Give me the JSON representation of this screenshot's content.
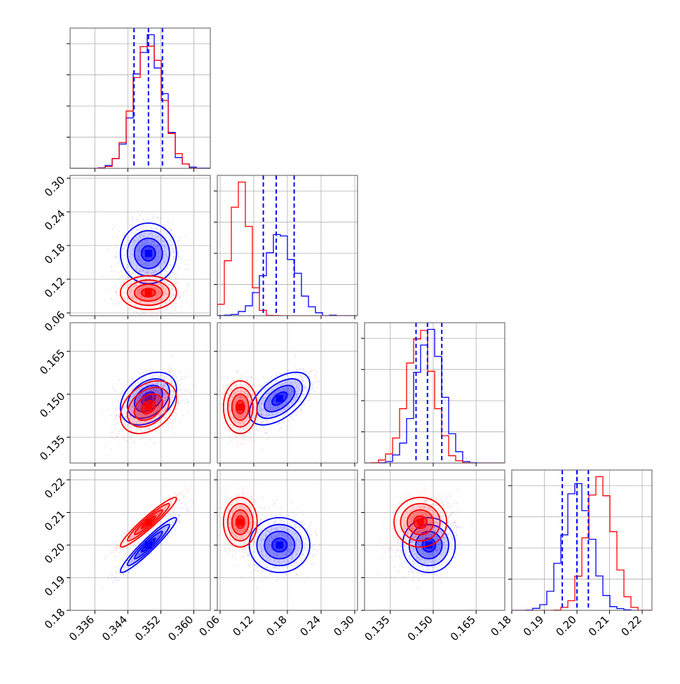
{
  "chart_data": {
    "type": "corner",
    "title": "",
    "grid": true,
    "parameters": [
      {
        "range": [
          0.33,
          0.364
        ],
        "ticks": [
          "0.336",
          "0.344",
          "0.352",
          "0.360"
        ],
        "tick_values": [
          0.336,
          0.344,
          0.352,
          0.36
        ]
      },
      {
        "range": [
          0.055,
          0.305
        ],
        "ticks": [
          "0.06",
          "0.12",
          "0.18",
          "0.24",
          "0.30"
        ],
        "tick_values": [
          0.06,
          0.12,
          0.18,
          0.24,
          0.3
        ]
      },
      {
        "range": [
          0.126,
          0.175
        ],
        "ticks": [
          "0.135",
          "0.150",
          "0.165"
        ],
        "tick_values": [
          0.135,
          0.15,
          0.165
        ]
      },
      {
        "range": [
          0.18,
          0.223
        ],
        "ticks": [
          "0.18",
          "0.19",
          "0.20",
          "0.21",
          "0.22"
        ],
        "tick_values": [
          0.18,
          0.19,
          0.2,
          0.21,
          0.22
        ]
      }
    ],
    "series": [
      {
        "color": "#0000ff",
        "mean": [
          0.349,
          0.166,
          0.1485,
          0.2
        ],
        "sd": [
          0.0034,
          0.027,
          0.0046,
          0.0042
        ],
        "correlation": [
          [
            1.0,
            0.0,
            0.35,
            0.95
          ],
          [
            0.0,
            1.0,
            0.55,
            0.0
          ],
          [
            0.35,
            0.55,
            1.0,
            0.0
          ],
          [
            0.95,
            0.0,
            0.0,
            1.0
          ]
        ],
        "quantiles": [
          [
            0.3455,
            0.349,
            0.3524
          ],
          [
            0.137,
            0.16,
            0.192
          ],
          [
            0.144,
            0.148,
            0.153
          ],
          [
            0.1955,
            0.2,
            0.2035
          ]
        ]
      },
      {
        "color": "#ff0000",
        "mean": [
          0.349,
          0.096,
          0.1455,
          0.207
        ],
        "sd": [
          0.0034,
          0.015,
          0.0046,
          0.0038
        ],
        "correlation": [
          [
            1.0,
            0.0,
            0.35,
            0.95
          ],
          [
            0.0,
            1.0,
            0.0,
            0.0
          ],
          [
            0.35,
            0.0,
            1.0,
            0.0
          ],
          [
            0.95,
            0.0,
            0.0,
            1.0
          ]
        ],
        "quantiles": null
      }
    ]
  }
}
